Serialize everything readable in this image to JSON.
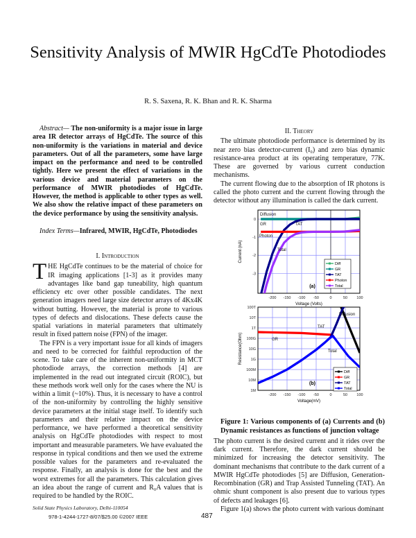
{
  "title": "Sensitivity Analysis of MWIR HgCdTe Photodiodes",
  "authors": "R. S. Saxena, R. K. Bhan and R. K. Sharma",
  "abstract": {
    "label": "Abstract—",
    "text": " The non-uniformity is a major issue in large area IR detector arrays of HgCdTe. The source of this non-uniformity is the variations in material and device parameters. Out of all the parameters, some have large impact on the performance and need to be controlled tightly. Here we present the effect of variations in the various device and material parameters on the performance of MWIR photodiodes of HgCdTe. However, the method is applicable to other types as well. We also show the relative impact of these parameters on the device performance by using the sensitivity analysis."
  },
  "index_terms": {
    "label": "Index Terms—",
    "text": "Infrared, MWIR, HgCdTe, Photodiodes"
  },
  "intro": {
    "heading": "I. Introduction",
    "dropcap": "T",
    "paragraphs": [
      "HE HgCdTe continues to be the material of choice for IR imaging applications [1-3] as it provides many advantages like band gap tuneability, high quantum efficiency etc over other possible candidates. The next generation imagers need large size detector arrays of 4Kx4K without butting. However, the material is prone to various types of defects and dislocations. These defects cause the spatial variations in material parameters that ultimately result in fixed pattern noise (FPN) of the imager.",
      "The FPN is a very important issue for all kinds of imagers and need to be corrected for faithful reproduction of the scene. To take care of the inherent non-uniformity in MCT photodiode arrays, the correction methods [4] are implemented in the read out integrated circuit (ROIC), but these methods work well only for the cases where the NU is within a limit (~10%). Thus, it is necessary to have a control of the non-uniformity by controlling the highly sensitive device parameters at the initial stage itself. To identify such parameters and their relative impact on the device performance, we have performed a theoretical sensitivity analysis on HgCdTe photodiodes with respect to most important and measurable parameters. We have evaluated the response in typical conditions and then we used the extreme possible values for the parameters and re-evaluated the response. Finally, an analysis is done for the best and the worst extremes for all the parameters. This calculation gives an idea about the range of current and R₀A values that is required to be handled by the ROIC."
    ]
  },
  "theory": {
    "heading": "II. Theory",
    "paragraphs": [
      "The ultimate photodiode performance is determined by its near zero bias detector-current (I₀) and zero bias dynamic resistance-area product at its operating temperature, 77K. These are governed by various current conduction mechanisms.",
      "The current flowing due to the absorption of IR photons is called the photo current and the current flowing through the detector without any illumination is called the dark current."
    ],
    "caption": "Figure 1: Various components of (a) Currents and (b) Dynamic resistances as functions of junction voltage",
    "paragraphs2": [
      "The photo current is the desired current and it rides over the dark current. Therefore, the dark current should be minimized for increasing the detector sensitivity. The dominant mechanisms that contribute to the dark current of a MWIR HgCdTe photodiodes [5] are Diffusion, Generation-Recombination (GR) and Trap Assisted Tunneling (TAT). An ohmic shunt component is also present due to various types of defects and leakages [6].",
      "Figure 1(a) shows the photo current with various dominant"
    ]
  },
  "footer": {
    "affiliation": "Solid State Physics Laboratory, Delhi-110054",
    "copyright": "978-1-4244-1727-8/07/$25.00 ©2007 IEEE",
    "page": "487"
  },
  "chart_data": [
    {
      "type": "line",
      "panel_label": "(a)",
      "xlabel": "Voltage (Volts)",
      "ylabel": "Current (nA)",
      "xlim": [
        -250,
        100
      ],
      "ylim": [
        -4.1,
        0.5
      ],
      "grid": true,
      "legend": "bottom-right",
      "xticks": [
        -200,
        -150,
        -100,
        -50,
        0,
        50,
        100
      ],
      "yticks": [
        0,
        -1,
        -2,
        -3
      ],
      "x": [
        -240,
        -220,
        -200,
        -180,
        -160,
        -140,
        -120,
        -100,
        -80,
        -50,
        0,
        50,
        100
      ],
      "series": [
        {
          "name": "Diff",
          "color": "#3cb371",
          "values": [
            0,
            0,
            0,
            0,
            0,
            0,
            0,
            0,
            0,
            0,
            0,
            0.01,
            0.08
          ]
        },
        {
          "name": "GR",
          "color": "#008b8b",
          "values": [
            0,
            0,
            0,
            0,
            0,
            0,
            0,
            0,
            0,
            0,
            0,
            0,
            0.02
          ]
        },
        {
          "name": "TAT",
          "color": "#00008b",
          "values": [
            -4.2,
            -2.9,
            -1.9,
            -1.15,
            -0.6,
            -0.3,
            -0.12,
            -0.04,
            -0.01,
            0,
            0,
            0,
            0
          ]
        },
        {
          "name": "Photon",
          "color": "#ff0000",
          "values": [
            -0.7,
            -0.7,
            -0.7,
            -0.7,
            -0.7,
            -0.7,
            -0.7,
            -0.7,
            -0.7,
            -0.7,
            -0.7,
            -0.69,
            -0.66
          ]
        },
        {
          "name": "Total",
          "color": "#9b30ff",
          "values": [
            -4.9,
            -3.6,
            -2.6,
            -1.85,
            -1.3,
            -1.0,
            -0.82,
            -0.74,
            -0.71,
            -0.7,
            -0.7,
            -0.69,
            -0.6
          ]
        }
      ],
      "annotations": [
        "Diffusion",
        "GR",
        "TAT",
        "Photon",
        "Total"
      ]
    },
    {
      "type": "line",
      "panel_label": "(b)",
      "xlabel": "Voltage(mV)",
      "ylabel": "Resistance(Ohm)",
      "xlim": [
        -250,
        100
      ],
      "ylim": [
        1000000.0,
        100000000000000.0
      ],
      "yscale": "log",
      "grid": true,
      "legend": "bottom-right",
      "xticks": [
        -200,
        -150,
        -100,
        -50,
        0,
        50,
        100
      ],
      "yticks": [
        "1M",
        "10M",
        "100M",
        "1G",
        "10G",
        "100G",
        "1T",
        "10T",
        "100T"
      ],
      "series": [
        {
          "name": "Diff",
          "color": "#000000",
          "points": [
            [
              30,
              250000000000000.0
            ],
            [
              50,
              10000000000000.0
            ],
            [
              75,
              200000000000.0
            ],
            [
              100,
              4000000000.0
            ]
          ]
        },
        {
          "name": "GR",
          "color": "#ff0000",
          "points": [
            [
              -250,
              400000000000.0
            ],
            [
              -100,
              320000000000.0
            ],
            [
              0,
              220000000000.0
            ],
            [
              10,
              160000000000.0
            ]
          ]
        },
        {
          "name": "TAT",
          "color": "#00008b",
          "points": [
            [
              -250,
              5000000.0
            ],
            [
              -200,
              20000000.0
            ],
            [
              -150,
              100000000.0
            ],
            [
              -100,
              800000000.0
            ],
            [
              -50,
              8000000000.0
            ],
            [
              -20,
              40000000000.0
            ],
            [
              0,
              130000000000.0
            ],
            [
              20,
              2500000000000.0
            ],
            [
              40,
              60000000000000.0
            ],
            [
              50,
              200000000000000.0
            ]
          ]
        },
        {
          "name": "Total",
          "color": "#0000ff",
          "points": [
            [
              -250,
              5000000.0
            ],
            [
              -200,
              20000000.0
            ],
            [
              -150,
              100000000.0
            ],
            [
              -100,
              800000000.0
            ],
            [
              -50,
              8000000000.0
            ],
            [
              -20,
              40000000000.0
            ],
            [
              0,
              130000000000.0
            ],
            [
              8,
              160000000000.0
            ],
            [
              30,
              25000000000.0
            ],
            [
              60,
              2000000000.0
            ],
            [
              100,
              160000000.0
            ]
          ]
        }
      ],
      "annotations": [
        "Diffusion",
        "TAT",
        "GR",
        "Total"
      ]
    }
  ]
}
